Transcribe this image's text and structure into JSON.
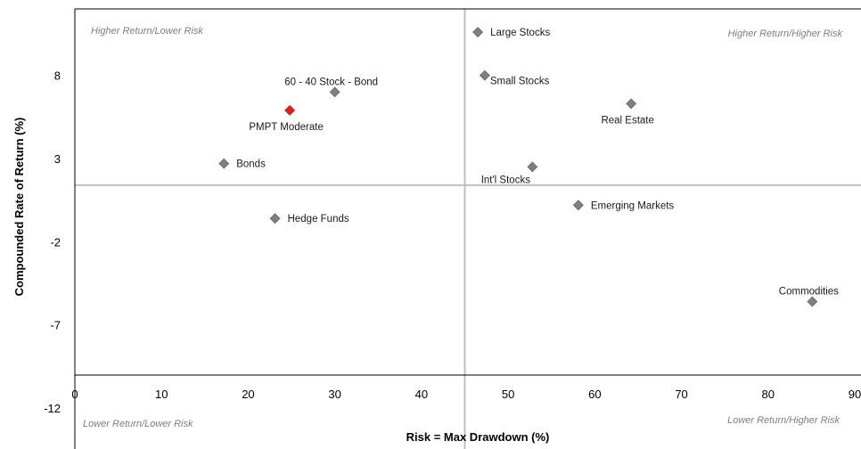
{
  "chart_data": {
    "type": "scatter",
    "xlabel": "Risk = Max Drawdown (%)",
    "ylabel": "Compounded Rate of Return (%)",
    "xlim": [
      0,
      90
    ],
    "ylim": [
      -12,
      12
    ],
    "x_ticks": [
      "0",
      "10",
      "20",
      "30",
      "40",
      "50",
      "60",
      "70",
      "80",
      "90"
    ],
    "y_ticks": [
      "8",
      "3",
      "-2",
      "-7",
      "-12"
    ],
    "y_tick_values": [
      8,
      3,
      -2,
      -7,
      -12
    ],
    "quadrant_lines": {
      "x": 45,
      "y": 1.4
    },
    "quadrant_labels": {
      "top_left": "Higher Return/Lower Risk",
      "top_right": "Higher Return/Higher Risk",
      "bottom_left": "Lower Return/Lower Risk",
      "bottom_right": "Lower Return/Higher Risk"
    },
    "colors": {
      "marker": "#7f7f7f",
      "highlight": "#e02020",
      "highlight_label": "#d93030",
      "axis": "#000000",
      "quadrant_line": "#bfbfbf"
    },
    "points": [
      {
        "label": "Large Stocks",
        "x": 46.5,
        "y": 10.6,
        "label_pos": "right"
      },
      {
        "label": "Small Stocks",
        "x": 47.3,
        "y": 8.0,
        "label_pos": "right-below"
      },
      {
        "label": "60 - 40 Stock - Bond",
        "x": 30.0,
        "y": 7.0,
        "label_pos": "above"
      },
      {
        "label": "PMPT Moderate",
        "x": 24.8,
        "y": 5.9,
        "label_pos": "below",
        "highlight": true
      },
      {
        "label": "Real Estate",
        "x": 64.2,
        "y": 6.3,
        "label_pos": "below"
      },
      {
        "label": "Bonds",
        "x": 17.2,
        "y": 2.7,
        "label_pos": "right"
      },
      {
        "label": "Int'l Stocks",
        "x": 52.8,
        "y": 2.5,
        "label_pos": "below-left"
      },
      {
        "label": "Emerging Markets",
        "x": 58.1,
        "y": 0.2,
        "label_pos": "right"
      },
      {
        "label": "Hedge Funds",
        "x": 23.1,
        "y": -0.6,
        "label_pos": "right"
      },
      {
        "label": "Commodities",
        "x": 85.1,
        "y": -5.6,
        "label_pos": "above"
      }
    ]
  }
}
